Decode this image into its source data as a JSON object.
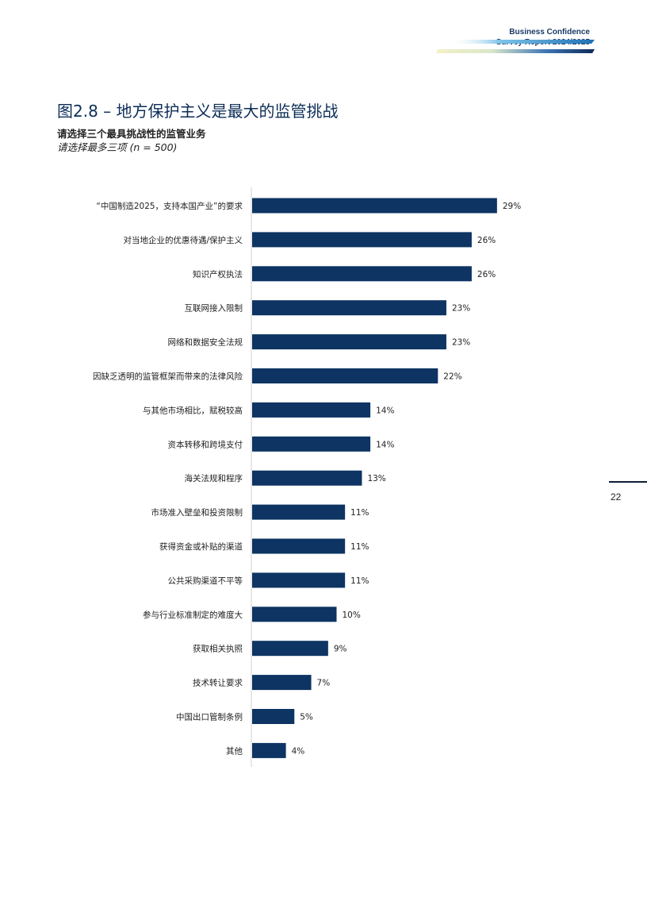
{
  "header": {
    "brand_line1": "Business Confidence",
    "brand_line2": "Survey Report  2024/2025"
  },
  "figure": {
    "title": "图2.8 – 地方保护主义是最大的监管挑战",
    "subtitle": "请选择三个最具挑战性的监管业务",
    "note": "请选择最多三项 (n = 500)"
  },
  "colors": {
    "bar": "#0d3462",
    "title": "#0c2d57",
    "axis": "#d0d0d0"
  },
  "chart_data": {
    "type": "bar",
    "orientation": "horizontal",
    "categories": [
      "“中国制造2025，支持本国产业”的要求",
      "对当地企业的优惠待遇/保护主义",
      "知识产权执法",
      "互联网接入限制",
      "网络和数据安全法规",
      "因缺乏透明的监管框架而带来的法律风险",
      "与其他市场相比，赋税较高",
      "资本转移和跨境支付",
      "海关法规和程序",
      "市场准入壁垒和投资限制",
      "获得资金或补贴的渠道",
      "公共采购渠道不平等",
      "参与行业标准制定的难度大",
      "获取相关执照",
      "技术转让要求",
      "中国出口管制条例",
      "其他"
    ],
    "values": [
      29,
      26,
      26,
      23,
      23,
      22,
      14,
      14,
      13,
      11,
      11,
      11,
      10,
      9,
      7,
      5,
      4
    ],
    "value_labels": [
      "29%",
      "26%",
      "26%",
      "23%",
      "23%",
      "22%",
      "14%",
      "14%",
      "13%",
      "11%",
      "11%",
      "11%",
      "10%",
      "9%",
      "7%",
      "5%",
      "4%"
    ],
    "xlim": [
      0,
      32
    ],
    "grid": false
  },
  "page": {
    "number": "22"
  }
}
